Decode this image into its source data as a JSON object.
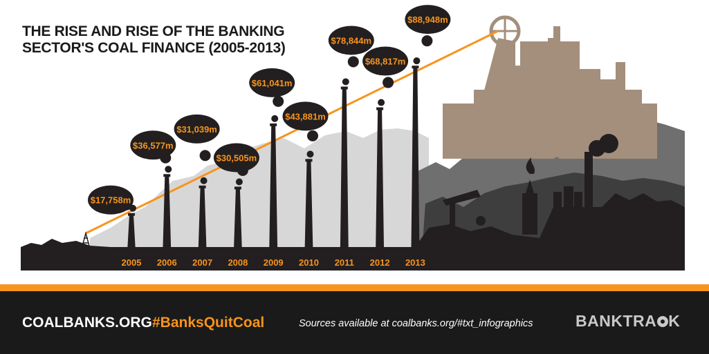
{
  "title": {
    "line1": "THE RISE AND RISE OF THE BANKING",
    "line2": "SECTOR'S COAL FINANCE (2005-2013)"
  },
  "chart_data": {
    "type": "bar",
    "categories": [
      "2005",
      "2006",
      "2007",
      "2008",
      "2009",
      "2010",
      "2011",
      "2012",
      "2013"
    ],
    "values": [
      17758,
      36577,
      31039,
      30505,
      61041,
      43881,
      78844,
      68817,
      88948
    ],
    "data_labels": [
      "$17,758m",
      "$36,577m",
      "$31,039m",
      "$30,505m",
      "$61,041m",
      "$43,881m",
      "$78,844m",
      "$68,817m",
      "$88,948m"
    ],
    "unit": "m",
    "ylim": [
      0,
      95000
    ],
    "trend_line": true,
    "grid": false,
    "legend": "none"
  },
  "footer": {
    "site": "COALBANKS.ORG",
    "hashtag": "#BanksQuitCoal",
    "sources": "Sources available at coalbanks.org/#txt_infographics",
    "logo_text": "BANKTRA",
    "logo_tail": "K"
  },
  "colors": {
    "accent": "#f7941d",
    "dark": "#231f20",
    "footer_bg": "#1a1a1a",
    "light_gray": "#d4d4d4",
    "mid_gray": "#6e6e6e",
    "brown": "#a48f7c"
  }
}
